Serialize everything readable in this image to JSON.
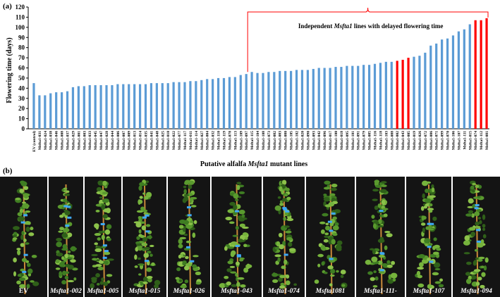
{
  "chart_data": {
    "type": "bar",
    "panel_label": "(a)",
    "ylabel": "Flowering time (days)",
    "xlabel": [
      {
        "text": "Putative alfalfa "
      },
      {
        "text": "Msfta1",
        "italic": true
      },
      {
        "text": " mutant lines"
      }
    ],
    "annotation": [
      {
        "text": "Independent "
      },
      {
        "text": "Msfta1",
        "italic": true
      },
      {
        "text": " lines with delayed flowering time"
      }
    ],
    "categories": [
      "EV (control)",
      "Msfta1-031",
      "Msfta1-024",
      "Msfta1-038",
      "Msfta1-046",
      "Msfta1-008",
      "Msfta1-037",
      "Msfta1-029",
      "Msfta1-001",
      "Msfta1-003",
      "Msfta1-033",
      "Msfta1-045",
      "Msfta1-047",
      "Msfta1-028",
      "Msfta1-044",
      "Msfta1-006",
      "Msfta1-007",
      "Msfta1-009",
      "Msfta1-013",
      "Msfta1-014",
      "Msfta1-035",
      "Msfta1-041",
      "Msfta1-048",
      "Msfta1-025",
      "Msfta1-010",
      "Msfta1-022",
      "Msfta1-077",
      "Msfta1-117",
      "Msfta1-011",
      "Msfta1-114",
      "Msfta1-027",
      "Msfta1-004",
      "Msfta1-032",
      "Msfta1-110",
      "Msfta1-119",
      "Msfta1-078",
      "Msfta1-113",
      "Msfta1-109",
      "Msfta1-097",
      "Msfta1-115",
      "Msfta1-104",
      "Msfta1-108",
      "Msfta1-073",
      "Msfta1-082",
      "Msfta1-083",
      "Msfta1-080",
      "Msfta1-105",
      "Msfta1-102",
      "Msfta1-020",
      "Msfta1-090",
      "Msfta1-093",
      "Msfta1-042",
      "Msfta1-096",
      "Msfta1-017",
      "Msfta1-100",
      "Msfta1-018",
      "Msfta1-095",
      "Msfta1-101",
      "Msfta1-091",
      "Msfta1-079",
      "Msfta1-085",
      "Msfta1-116",
      "Msfta1-118",
      "Msfta1-103",
      "Msfta1-088",
      "Msfta1-002",
      "Msfta1-043",
      "Msfta1-005",
      "Msfta1-019",
      "Msfta1-026",
      "Msfta1-072",
      "Msfta1-086",
      "Msfta1-071",
      "Msfta1-099",
      "Msfta1-070",
      "Msfta1-106",
      "Msfta1-107",
      "Msfta1-111",
      "Msfta1-015",
      "Msfta1-074",
      "Msfta1-112",
      "Msfta1-081"
    ],
    "values": [
      45,
      33,
      33,
      35,
      36,
      36,
      37,
      41,
      42,
      42,
      43,
      43,
      43,
      43,
      43,
      44,
      44,
      44,
      44,
      44,
      44,
      45,
      45,
      45,
      45,
      46,
      46,
      46,
      47,
      47,
      48,
      49,
      49,
      50,
      50,
      51,
      51,
      53,
      54,
      56,
      55,
      55,
      56,
      56,
      57,
      57,
      57,
      58,
      58,
      58,
      59,
      60,
      60,
      60,
      61,
      61,
      62,
      62,
      62,
      63,
      63,
      64,
      65,
      66,
      66,
      67,
      68,
      70,
      71,
      72,
      75,
      82,
      84,
      88,
      89,
      92,
      96,
      98,
      103,
      107,
      107,
      109
    ],
    "colors": [
      "#5b9bd5",
      "#5b9bd5",
      "#5b9bd5",
      "#5b9bd5",
      "#5b9bd5",
      "#5b9bd5",
      "#5b9bd5",
      "#5b9bd5",
      "#5b9bd5",
      "#5b9bd5",
      "#5b9bd5",
      "#5b9bd5",
      "#5b9bd5",
      "#5b9bd5",
      "#5b9bd5",
      "#5b9bd5",
      "#5b9bd5",
      "#5b9bd5",
      "#5b9bd5",
      "#5b9bd5",
      "#5b9bd5",
      "#5b9bd5",
      "#5b9bd5",
      "#5b9bd5",
      "#5b9bd5",
      "#5b9bd5",
      "#5b9bd5",
      "#5b9bd5",
      "#5b9bd5",
      "#5b9bd5",
      "#5b9bd5",
      "#5b9bd5",
      "#5b9bd5",
      "#5b9bd5",
      "#5b9bd5",
      "#5b9bd5",
      "#5b9bd5",
      "#5b9bd5",
      "#5b9bd5",
      "#5b9bd5",
      "#5b9bd5",
      "#5b9bd5",
      "#5b9bd5",
      "#5b9bd5",
      "#5b9bd5",
      "#5b9bd5",
      "#5b9bd5",
      "#5b9bd5",
      "#5b9bd5",
      "#5b9bd5",
      "#5b9bd5",
      "#5b9bd5",
      "#5b9bd5",
      "#5b9bd5",
      "#5b9bd5",
      "#5b9bd5",
      "#5b9bd5",
      "#5b9bd5",
      "#5b9bd5",
      "#5b9bd5",
      "#5b9bd5",
      "#5b9bd5",
      "#5b9bd5",
      "#5b9bd5",
      "#5b9bd5",
      "#ff0000",
      "#ff0000",
      "#ff0000",
      "#5b9bd5",
      "#5b9bd5",
      "#5b9bd5",
      "#5b9bd5",
      "#5b9bd5",
      "#5b9bd5",
      "#5b9bd5",
      "#5b9bd5",
      "#5b9bd5",
      "#5b9bd5",
      "#5b9bd5",
      "#ff0000",
      "#ff0000",
      "#ff0000"
    ],
    "ylim": [
      0,
      120
    ],
    "yticks": [
      0,
      10,
      20,
      30,
      40,
      50,
      60,
      70,
      80,
      90,
      100,
      110,
      120
    ],
    "grid": false
  },
  "photo_panel": {
    "panel_label": "(b)",
    "captions": [
      {
        "text": "EV"
      },
      {
        "text": "Msfta1-002",
        "italic": true
      },
      {
        "text": "Msfta1-005",
        "italic": true
      },
      {
        "text": "Msfta1-015",
        "italic": true
      },
      {
        "text": "Msfta1-026",
        "italic": true
      },
      {
        "text": "Msfta1-043",
        "italic": true
      },
      {
        "text": "Msfta1-074",
        "italic": true
      },
      {
        "text": "Msfta1081",
        "italic": true
      },
      {
        "text": "Msfta1-111-",
        "italic": true
      },
      {
        "text": "Msfta1-107",
        "italic": true
      },
      {
        "text": "Msfta1-094",
        "italic": true
      }
    ]
  }
}
